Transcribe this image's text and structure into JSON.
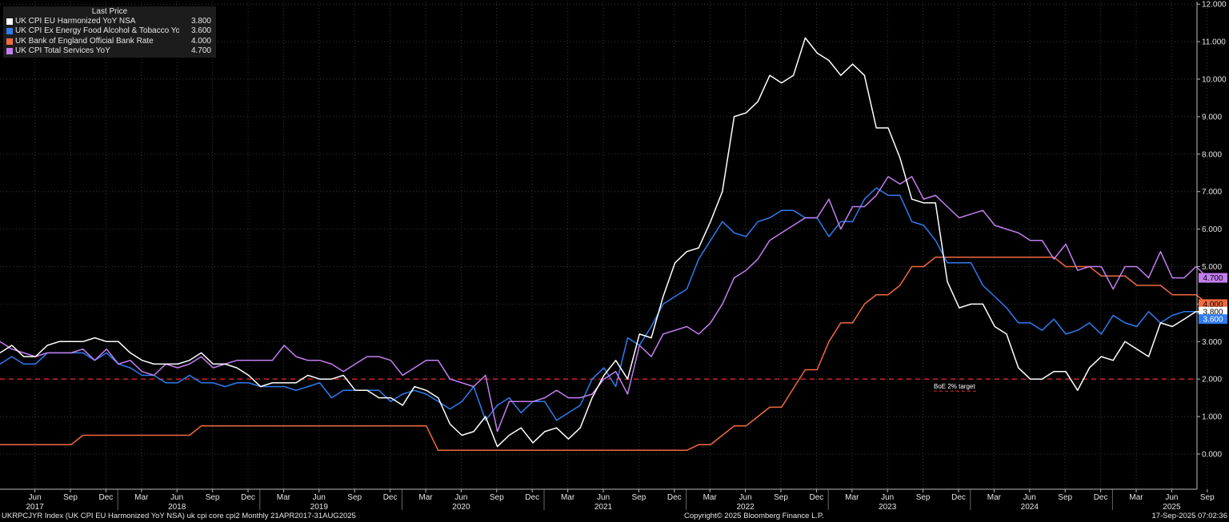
{
  "legend": {
    "header": "Last Price",
    "items": [
      {
        "name": "UK CPI EU Harmonized YoY NSA",
        "value": "3.800",
        "color": "#ffffff"
      },
      {
        "name": "UK CPI Ex Energy Food Alcohol & Tobacco YoY",
        "value": "3.600",
        "color": "#2f7bef"
      },
      {
        "name": "UK Bank of England Official Bank Rate",
        "value": "4.000",
        "color": "#f26a3f"
      },
      {
        "name": "UK CPI Total Services YoY",
        "value": "4.700",
        "color": "#c47ef0"
      }
    ]
  },
  "footer": {
    "left": "UKRPCJYR Index (UK CPI EU Harmonized YoY NSA) uk cpi core cpi2  Monthly 21APR2017-31AUG2025",
    "center": "Copyright© 2025 Bloomberg Finance L.P.",
    "right": "17-Sep-2025 07:02:36"
  },
  "chart_data": {
    "type": "line",
    "x_start": "2017-04",
    "x_end": "2025-08",
    "frequency": "monthly",
    "ylim": [
      -0.5,
      12.2
    ],
    "y_ticks": [
      "0.000",
      "1.000",
      "2.000",
      "3.000",
      "4.000",
      "5.000",
      "6.000",
      "7.000",
      "8.000",
      "9.000",
      "10.000",
      "11.000",
      "12.000"
    ],
    "x_month_ticks": [
      "Jun",
      "Sep",
      "Dec",
      "Mar",
      "Jun",
      "Sep",
      "Dec",
      "Mar",
      "Jun",
      "Sep",
      "Dec",
      "Mar",
      "Jun",
      "Sep",
      "Dec",
      "Mar",
      "Jun",
      "Sep",
      "Dec",
      "Mar",
      "Jun",
      "Sep",
      "Dec",
      "Mar",
      "Jun",
      "Sep",
      "Dec",
      "Mar",
      "Jun",
      "Sep",
      "Dec",
      "Mar",
      "Jun",
      "Sep"
    ],
    "x_year_ticks": [
      "2017",
      "2018",
      "2019",
      "2020",
      "2021",
      "2022",
      "2023",
      "2024",
      "2025"
    ],
    "grid": true,
    "legend_position": "top-left",
    "reference_line": {
      "value": 2.0,
      "label": "BoE 2% target",
      "color": "#e0262b"
    },
    "series": [
      {
        "name": "UK CPI EU Harmonized YoY NSA",
        "color": "#ffffff",
        "last": "3.800",
        "values": [
          2.7,
          2.9,
          2.6,
          2.6,
          2.9,
          3.0,
          3.0,
          3.0,
          3.1,
          3.0,
          3.0,
          2.7,
          2.5,
          2.4,
          2.4,
          2.4,
          2.5,
          2.7,
          2.4,
          2.4,
          2.3,
          2.1,
          1.8,
          1.9,
          1.9,
          1.9,
          2.1,
          2.0,
          2.0,
          2.1,
          1.7,
          1.7,
          1.5,
          1.5,
          1.3,
          1.8,
          1.7,
          1.5,
          0.8,
          0.5,
          0.6,
          1.0,
          0.2,
          0.5,
          0.7,
          0.3,
          0.6,
          0.7,
          0.4,
          0.7,
          1.5,
          2.1,
          2.5,
          2.0,
          3.2,
          3.1,
          4.2,
          5.1,
          5.4,
          5.5,
          6.2,
          7.0,
          9.0,
          9.1,
          9.4,
          10.1,
          9.9,
          10.1,
          11.1,
          10.7,
          10.5,
          10.1,
          10.4,
          10.1,
          8.7,
          8.7,
          7.9,
          6.8,
          6.7,
          6.7,
          4.6,
          3.9,
          4.0,
          4.0,
          3.4,
          3.2,
          2.3,
          2.0,
          2.0,
          2.2,
          2.2,
          1.7,
          2.3,
          2.6,
          2.5,
          3.0,
          2.8,
          2.6,
          3.5,
          3.4,
          3.6,
          3.8,
          3.8
        ]
      },
      {
        "name": "UK CPI Ex Energy Food Alcohol & Tobacco YoY",
        "color": "#2f7bef",
        "last": "3.600",
        "values": [
          2.4,
          2.6,
          2.4,
          2.4,
          2.7,
          2.7,
          2.7,
          2.7,
          2.5,
          2.7,
          2.4,
          2.3,
          2.1,
          2.1,
          1.9,
          1.9,
          2.1,
          1.9,
          1.9,
          1.8,
          1.9,
          1.9,
          1.8,
          1.8,
          1.8,
          1.7,
          1.8,
          1.9,
          1.5,
          1.7,
          1.7,
          1.7,
          1.7,
          1.4,
          1.6,
          1.7,
          1.6,
          1.4,
          1.2,
          1.4,
          1.8,
          0.9,
          1.3,
          1.5,
          1.1,
          1.4,
          1.4,
          0.9,
          1.1,
          1.3,
          2.0,
          2.3,
          1.8,
          3.1,
          2.9,
          3.4,
          4.0,
          4.2,
          4.4,
          5.2,
          5.7,
          6.2,
          5.9,
          5.8,
          6.2,
          6.3,
          6.5,
          6.5,
          6.3,
          6.3,
          5.8,
          6.2,
          6.2,
          6.8,
          7.1,
          6.9,
          6.9,
          6.2,
          6.1,
          5.7,
          5.1,
          5.1,
          5.1,
          4.5,
          4.2,
          3.9,
          3.5,
          3.5,
          3.3,
          3.6,
          3.2,
          3.3,
          3.5,
          3.2,
          3.7,
          3.5,
          3.4,
          3.8,
          3.5,
          3.7,
          3.8,
          3.8,
          3.6
        ]
      },
      {
        "name": "UK Bank of England Official Bank Rate",
        "color": "#f26a3f",
        "last": "4.000",
        "values": [
          0.25,
          0.25,
          0.25,
          0.25,
          0.25,
          0.25,
          0.25,
          0.5,
          0.5,
          0.5,
          0.5,
          0.5,
          0.5,
          0.5,
          0.5,
          0.5,
          0.5,
          0.75,
          0.75,
          0.75,
          0.75,
          0.75,
          0.75,
          0.75,
          0.75,
          0.75,
          0.75,
          0.75,
          0.75,
          0.75,
          0.75,
          0.75,
          0.75,
          0.75,
          0.75,
          0.75,
          0.75,
          0.1,
          0.1,
          0.1,
          0.1,
          0.1,
          0.1,
          0.1,
          0.1,
          0.1,
          0.1,
          0.1,
          0.1,
          0.1,
          0.1,
          0.1,
          0.1,
          0.1,
          0.1,
          0.1,
          0.1,
          0.1,
          0.1,
          0.25,
          0.25,
          0.5,
          0.75,
          0.75,
          1.0,
          1.25,
          1.25,
          1.75,
          2.25,
          2.25,
          3.0,
          3.5,
          3.5,
          4.0,
          4.25,
          4.25,
          4.5,
          5.0,
          5.0,
          5.25,
          5.25,
          5.25,
          5.25,
          5.25,
          5.25,
          5.25,
          5.25,
          5.25,
          5.25,
          5.25,
          5.0,
          5.0,
          5.0,
          4.75,
          4.75,
          4.75,
          4.5,
          4.5,
          4.5,
          4.25,
          4.25,
          4.25,
          4.0
        ]
      },
      {
        "name": "UK CPI Total Services YoY",
        "color": "#c47ef0",
        "last": "4.700",
        "values": [
          3.0,
          2.8,
          2.7,
          2.6,
          2.7,
          2.7,
          2.7,
          2.8,
          2.5,
          2.8,
          2.4,
          2.5,
          2.2,
          2.1,
          2.4,
          2.3,
          2.4,
          2.6,
          2.3,
          2.4,
          2.5,
          2.5,
          2.5,
          2.5,
          2.9,
          2.6,
          2.5,
          2.5,
          2.4,
          2.2,
          2.4,
          2.6,
          2.6,
          2.5,
          2.1,
          2.3,
          2.5,
          2.5,
          2.0,
          1.9,
          1.8,
          2.1,
          0.6,
          1.4,
          1.4,
          1.4,
          1.5,
          1.7,
          1.5,
          1.5,
          1.6,
          2.0,
          2.2,
          1.6,
          2.9,
          2.6,
          3.2,
          3.3,
          3.4,
          3.2,
          3.5,
          4.0,
          4.7,
          4.9,
          5.2,
          5.7,
          5.9,
          6.1,
          6.3,
          6.3,
          6.8,
          6.0,
          6.6,
          6.6,
          6.9,
          7.4,
          7.2,
          7.4,
          6.8,
          6.9,
          6.6,
          6.3,
          6.4,
          6.5,
          6.1,
          6.0,
          5.9,
          5.7,
          5.7,
          5.2,
          5.6,
          4.9,
          5.0,
          5.0,
          4.4,
          5.0,
          5.0,
          4.7,
          5.4,
          4.7,
          4.7,
          5.0,
          4.7
        ]
      }
    ]
  }
}
